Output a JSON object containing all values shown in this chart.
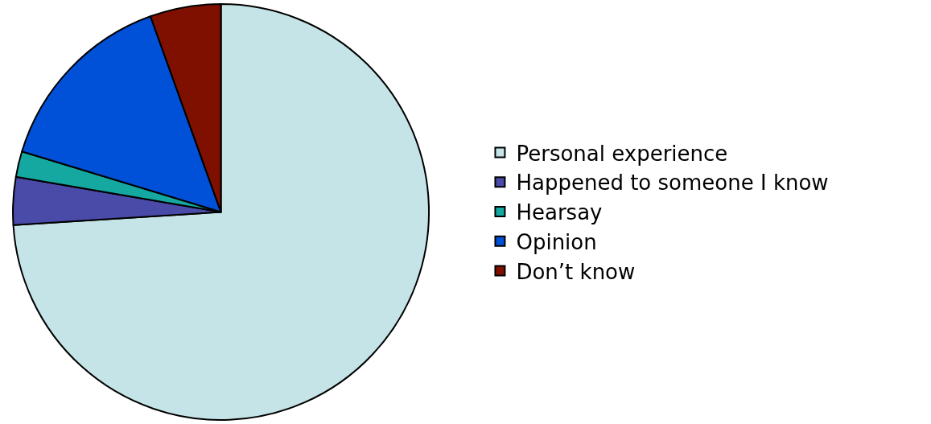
{
  "chart_data": {
    "type": "pie",
    "categories": [
      "Personal experience",
      "Happened to someone I know",
      "Hearsay",
      "Opinion",
      "Don’t know"
    ],
    "values": [
      74,
      3.7,
      2,
      14.8,
      5.5
    ],
    "colors": [
      "#c5e4e8",
      "#4a4aa8",
      "#14a8a0",
      "#0050d8",
      "#7f1000"
    ],
    "legend": "right"
  }
}
